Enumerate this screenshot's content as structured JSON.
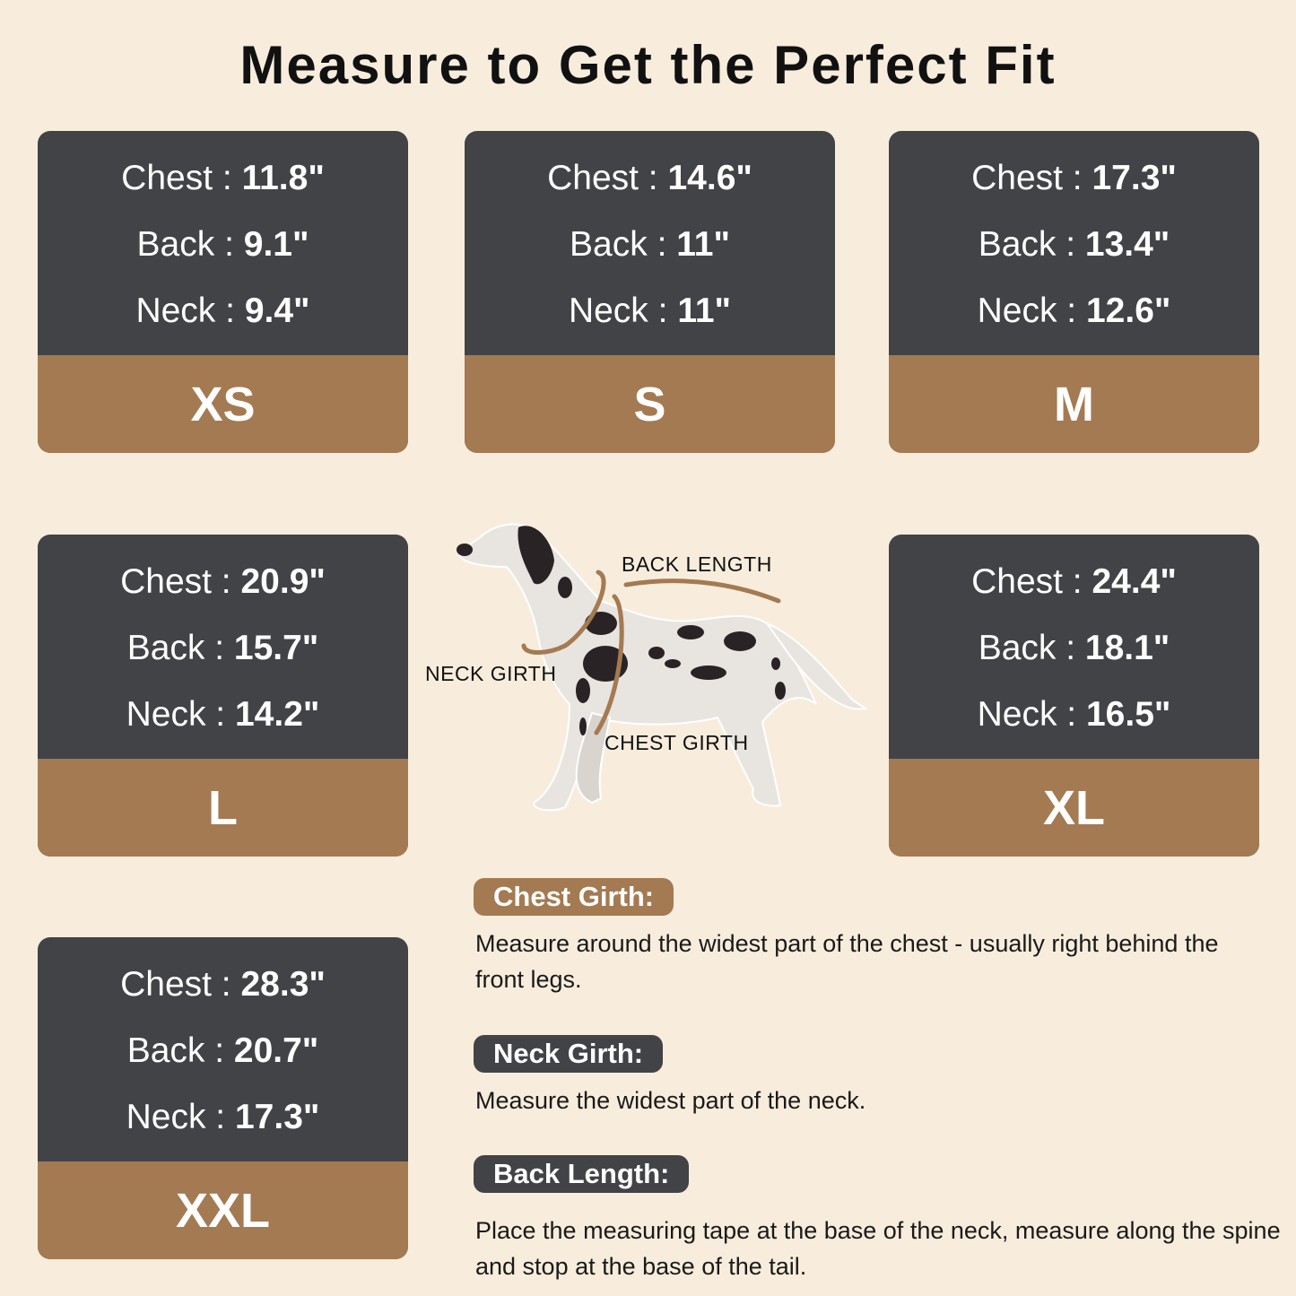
{
  "title": "Measure to Get the Perfect Fit",
  "colors": {
    "background": "#f8eddc",
    "card_dark": "#424346",
    "accent_brown": "#a47a52"
  },
  "sizes": [
    {
      "size": "XS",
      "chest_label": "Chest : ",
      "chest": "11.8\"",
      "back_label": "Back : ",
      "back": "9.1\"",
      "neck_label": "Neck : ",
      "neck": "9.4\""
    },
    {
      "size": "S",
      "chest_label": "Chest : ",
      "chest": "14.6\"",
      "back_label": "Back : ",
      "back": "11\"",
      "neck_label": "Neck : ",
      "neck": "11\""
    },
    {
      "size": "M",
      "chest_label": "Chest : ",
      "chest": "17.3\"",
      "back_label": "Back : ",
      "back": "13.4\"",
      "neck_label": "Neck : ",
      "neck": "12.6\""
    },
    {
      "size": "L",
      "chest_label": "Chest : ",
      "chest": "20.9\"",
      "back_label": "Back : ",
      "back": "15.7\"",
      "neck_label": "Neck : ",
      "neck": "14.2\""
    },
    {
      "size": "XL",
      "chest_label": "Chest : ",
      "chest": "24.4\"",
      "back_label": "Back : ",
      "back": "18.1\"",
      "neck_label": "Neck : ",
      "neck": "16.5\""
    },
    {
      "size": "XXL",
      "chest_label": "Chest : ",
      "chest": "28.3\"",
      "back_label": "Back : ",
      "back": "20.7\"",
      "neck_label": "Neck : ",
      "neck": "17.3\""
    }
  ],
  "diagram": {
    "back_length": "BACK LENGTH",
    "neck_girth": "NECK GIRTH",
    "chest_girth": "CHEST GIRTH"
  },
  "instructions": [
    {
      "heading": "Chest Girth:",
      "text": "Measure around the widest part of the chest - usually right behind the front legs."
    },
    {
      "heading": "Neck Girth:",
      "text": "Measure the widest part of the neck."
    },
    {
      "heading": "Back Length:",
      "text": "Place the measuring tape at the base of the neck, measure along the spine and stop at the base of the tail."
    }
  ]
}
